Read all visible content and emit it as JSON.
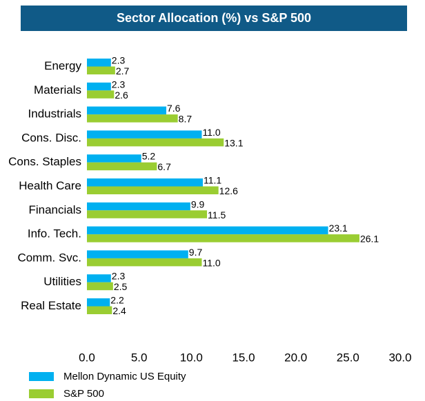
{
  "chart_data": {
    "type": "hbar",
    "title": "Sector Allocation (%) vs S&P 500",
    "categories": [
      "Energy",
      "Materials",
      "Industrials",
      "Cons. Disc.",
      "Cons. Staples",
      "Health Care",
      "Financials",
      "Info. Tech.",
      "Comm. Svc.",
      "Utilities",
      "Real Estate"
    ],
    "series": [
      {
        "name": "Mellon Dynamic US Equity",
        "color": "#00b0f0",
        "values": [
          2.3,
          2.3,
          7.6,
          11.0,
          5.2,
          11.1,
          9.9,
          23.1,
          9.7,
          2.3,
          2.2
        ],
        "value_labels": [
          "2.3",
          "2.3",
          "7.6",
          "11.0",
          "5.2",
          "11.1",
          "9.9",
          "23.1",
          "9.7",
          "2.3",
          "2.2"
        ]
      },
      {
        "name": "S&P 500",
        "color": "#9acd32",
        "values": [
          2.7,
          2.6,
          8.7,
          13.1,
          6.7,
          12.6,
          11.5,
          26.1,
          11.0,
          2.5,
          2.4
        ],
        "value_labels": [
          "2.7",
          "2.6",
          "8.7",
          "13.1",
          "6.7",
          "12.6",
          "11.5",
          "26.1",
          "11.0",
          "2.5",
          "2.4"
        ]
      }
    ],
    "xlim": [
      0,
      30
    ],
    "xticks": [
      {
        "value": 0,
        "label": "0.0"
      },
      {
        "value": 5,
        "label": "5.0"
      },
      {
        "value": 10,
        "label": "10.0"
      },
      {
        "value": 15,
        "label": "15.0"
      },
      {
        "value": 20,
        "label": "20.0"
      },
      {
        "value": 25,
        "label": "25.0"
      },
      {
        "value": 30,
        "label": "30.0"
      }
    ],
    "grid": false
  }
}
